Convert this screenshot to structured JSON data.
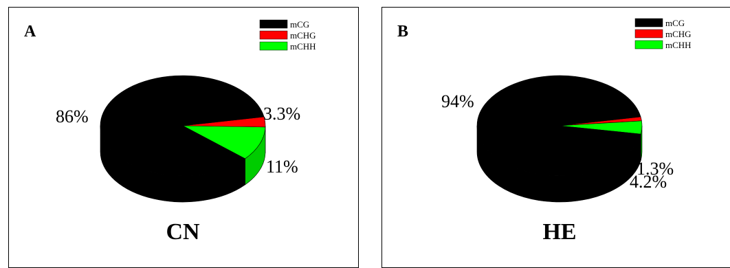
{
  "chart_data": [
    {
      "type": "pie",
      "panel": "A",
      "condition": "CN",
      "series": [
        {
          "name": "mCG",
          "value": 86,
          "label": "86%",
          "color": "#000000"
        },
        {
          "name": "mCHG",
          "value": 3.3,
          "label": "3.3%",
          "color": "#ff0000"
        },
        {
          "name": "mCHH",
          "value": 11,
          "label": "11%",
          "color": "#00ff00"
        }
      ],
      "legend_position": "top-right"
    },
    {
      "type": "pie",
      "panel": "B",
      "condition": "HE",
      "series": [
        {
          "name": "mCG",
          "value": 94,
          "label": "94%",
          "color": "#000000"
        },
        {
          "name": "mCHG",
          "value": 1.3,
          "label": "1.3%",
          "color": "#ff0000"
        },
        {
          "name": "mCHH",
          "value": 4.2,
          "label": "4.2%",
          "color": "#00ff00"
        }
      ],
      "legend_position": "top-right"
    }
  ]
}
